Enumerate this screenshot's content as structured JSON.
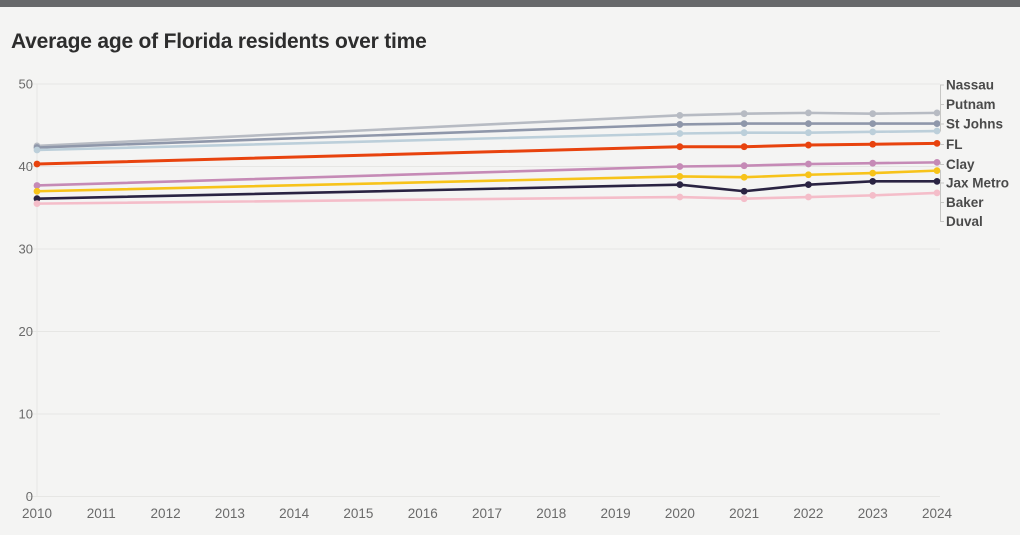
{
  "page": {
    "background_color": "#f4f4f3",
    "topbar_color": "#67686a"
  },
  "chart_data": {
    "type": "line",
    "title": "Average age of Florida residents over time",
    "xlabel": "",
    "ylabel": "",
    "xlim": [
      2010,
      2024
    ],
    "ylim": [
      0,
      50
    ],
    "x": [
      2010,
      2020,
      2021,
      2022,
      2023,
      2024
    ],
    "x_tick_labels": [
      "2010",
      "2011",
      "2012",
      "2013",
      "2014",
      "2015",
      "2016",
      "2017",
      "2018",
      "2019",
      "2020",
      "2021",
      "2022",
      "2023",
      "2024"
    ],
    "y_ticks": [
      0,
      10,
      20,
      30,
      40,
      50
    ],
    "grid": "horizontal",
    "legend_position": "direct-labels-right",
    "axis_text_color": "#6a6a6a",
    "grid_color": "#e6e6e4",
    "label_text_color": "#4a4a4a",
    "leader_line_color": "#c6c6c4",
    "series": [
      {
        "name": "Nassau",
        "color": "#b7bbc3",
        "values": [
          42.5,
          46.2,
          46.4,
          46.5,
          46.4,
          46.5
        ]
      },
      {
        "name": "Putnam",
        "color": "#8f97aa",
        "values": [
          42.3,
          45.1,
          45.2,
          45.2,
          45.2,
          45.2
        ]
      },
      {
        "name": "St Johns",
        "color": "#bccfda",
        "values": [
          42.0,
          44.0,
          44.1,
          44.1,
          44.2,
          44.3
        ]
      },
      {
        "name": "FL",
        "color": "#e8430e",
        "values": [
          40.3,
          42.4,
          42.4,
          42.6,
          42.7,
          42.8
        ]
      },
      {
        "name": "Clay",
        "color": "#c58ab6",
        "values": [
          37.7,
          40.0,
          40.1,
          40.3,
          40.4,
          40.5
        ]
      },
      {
        "name": "Jax Metro",
        "color": "#f7c31a",
        "values": [
          37.0,
          38.8,
          38.7,
          39.0,
          39.2,
          39.5
        ]
      },
      {
        "name": "Baker",
        "color": "#2a2342",
        "values": [
          36.1,
          37.8,
          37.0,
          37.8,
          38.2,
          38.2
        ]
      },
      {
        "name": "Duval",
        "color": "#f4bdc9",
        "values": [
          35.5,
          36.3,
          36.1,
          36.3,
          36.5,
          36.8
        ]
      }
    ]
  }
}
